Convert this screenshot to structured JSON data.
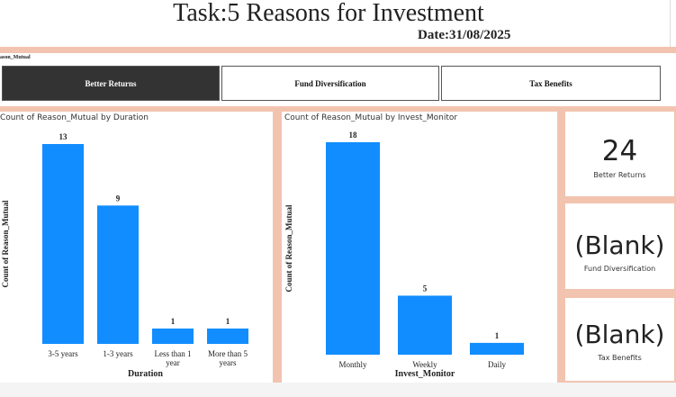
{
  "header": {
    "title": "Task:5 Reasons for Investment",
    "date": "Date:31/08/2025"
  },
  "slicer": {
    "label": "ason_Mutual",
    "buttons": [
      {
        "label": "Better Returns",
        "selected": true
      },
      {
        "label": "Fund Diversification",
        "selected": false
      },
      {
        "label": "Tax Benefits",
        "selected": false
      }
    ]
  },
  "colors": {
    "bar": "#118dff",
    "accent_band": "#f2c4b0",
    "selected_button": "#333333"
  },
  "chart_data": [
    {
      "type": "bar",
      "title": "Count of Reason_Mutual by Duration",
      "xlabel": "Duration",
      "ylabel": "Count of Reason_Mutual",
      "categories": [
        "3-5 years",
        "1-3 years",
        "Less than 1 year",
        "More than 5 years"
      ],
      "values": [
        13,
        9,
        1,
        1
      ],
      "ylim": [
        0,
        13
      ],
      "grid": false,
      "legend": "none"
    },
    {
      "type": "bar",
      "title": "Count of Reason_Mutual by Invest_Monitor",
      "xlabel": "Invest_Monitor",
      "ylabel": "Count of Reason_Mutual",
      "categories": [
        "Monthly",
        "Weekly",
        "Daily"
      ],
      "values": [
        18,
        5,
        1
      ],
      "ylim": [
        0,
        18
      ],
      "grid": false,
      "legend": "none"
    }
  ],
  "cards": [
    {
      "value": "24",
      "label": "Better Returns"
    },
    {
      "value": "(Blank)",
      "label": "Fund Diversification"
    },
    {
      "value": "(Blank)",
      "label": "Tax Benefits"
    }
  ]
}
